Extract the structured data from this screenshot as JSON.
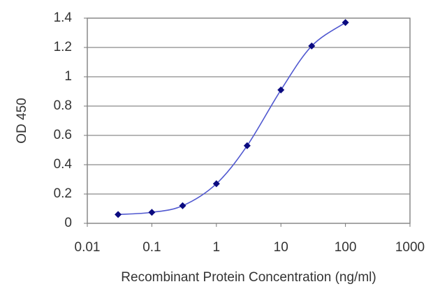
{
  "chart_data": {
    "type": "line",
    "x_label": "Recombinant Protein Concentration (ng/ml)",
    "y_label": "OD 450",
    "x": [
      0.03,
      0.1,
      0.3,
      1,
      3,
      10,
      30,
      100
    ],
    "series": [
      {
        "values": [
          0.06,
          0.075,
          0.12,
          0.27,
          0.53,
          0.91,
          1.21,
          1.37
        ],
        "color": "#5058d0",
        "marker_color": "#0b0b80"
      }
    ],
    "xscale": "log",
    "xlim": [
      0.01,
      1000
    ],
    "xticks": [
      0.01,
      0.1,
      1,
      10,
      100,
      1000
    ],
    "ylim": [
      0,
      1.4
    ],
    "yticks": [
      0,
      0.2,
      0.4,
      0.6,
      0.8,
      1,
      1.2,
      1.4
    ],
    "grid": true
  }
}
